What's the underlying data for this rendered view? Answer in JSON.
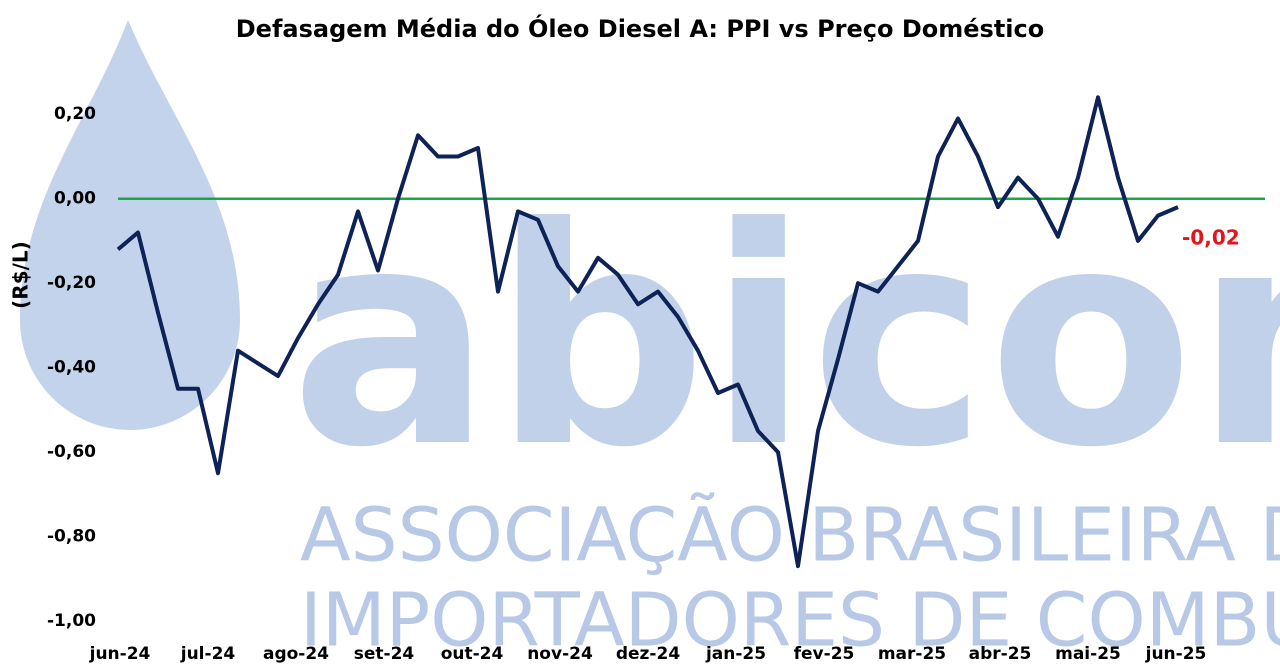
{
  "chart_data": {
    "type": "line",
    "title": "Defasagem Média do Óleo Diesel A: PPI vs Preço Doméstico",
    "y_label": "(R$/L)",
    "xticks": [
      "jun-24",
      "jul-24",
      "ago-24",
      "set-24",
      "out-24",
      "nov-24",
      "dez-24",
      "jan-25",
      "fev-25",
      "mar-25",
      "abr-25",
      "mai-25",
      "jun-25"
    ],
    "ylim": [
      -1.0,
      0.3
    ],
    "yticks": [
      {
        "value": -1.0,
        "label": "-1,00"
      },
      {
        "value": -0.8,
        "label": "-0,80"
      },
      {
        "value": -0.6,
        "label": "-0,60"
      },
      {
        "value": -0.4,
        "label": "-0,40"
      },
      {
        "value": -0.2,
        "label": "-0,20"
      },
      {
        "value": 0,
        "label": "0,00"
      },
      {
        "value": 0.2,
        "label": "0,20"
      }
    ],
    "reference_line": {
      "value": 0,
      "color": "#1aa64b"
    },
    "series": [
      {
        "color": "#0d2257",
        "values": [
          -0.12,
          -0.08,
          -0.27,
          -0.45,
          -0.45,
          -0.65,
          -0.36,
          -0.39,
          -0.42,
          -0.33,
          -0.25,
          -0.18,
          -0.03,
          -0.17,
          0.0,
          0.15,
          0.1,
          0.1,
          0.12,
          -0.22,
          -0.03,
          -0.05,
          -0.16,
          -0.22,
          -0.14,
          -0.18,
          -0.25,
          -0.22,
          -0.28,
          -0.36,
          -0.46,
          -0.44,
          -0.55,
          -0.6,
          -0.87,
          -0.55,
          -0.38,
          -0.2,
          -0.22,
          -0.16,
          -0.1,
          0.1,
          0.19,
          0.1,
          -0.02,
          0.05,
          0.0,
          -0.09,
          0.05,
          0.24,
          0.05,
          -0.1,
          -0.04,
          -0.02
        ]
      }
    ],
    "end_label": {
      "text": "-0,02",
      "color": "#e8141b"
    },
    "watermark": {
      "logo": "abicom",
      "line1": "ASSOCIAÇÃO BRASILEIRA DOS",
      "line2": "IMPORTADORES DE COMBUSTÍVEIS",
      "color": "#b7c9e6"
    }
  }
}
